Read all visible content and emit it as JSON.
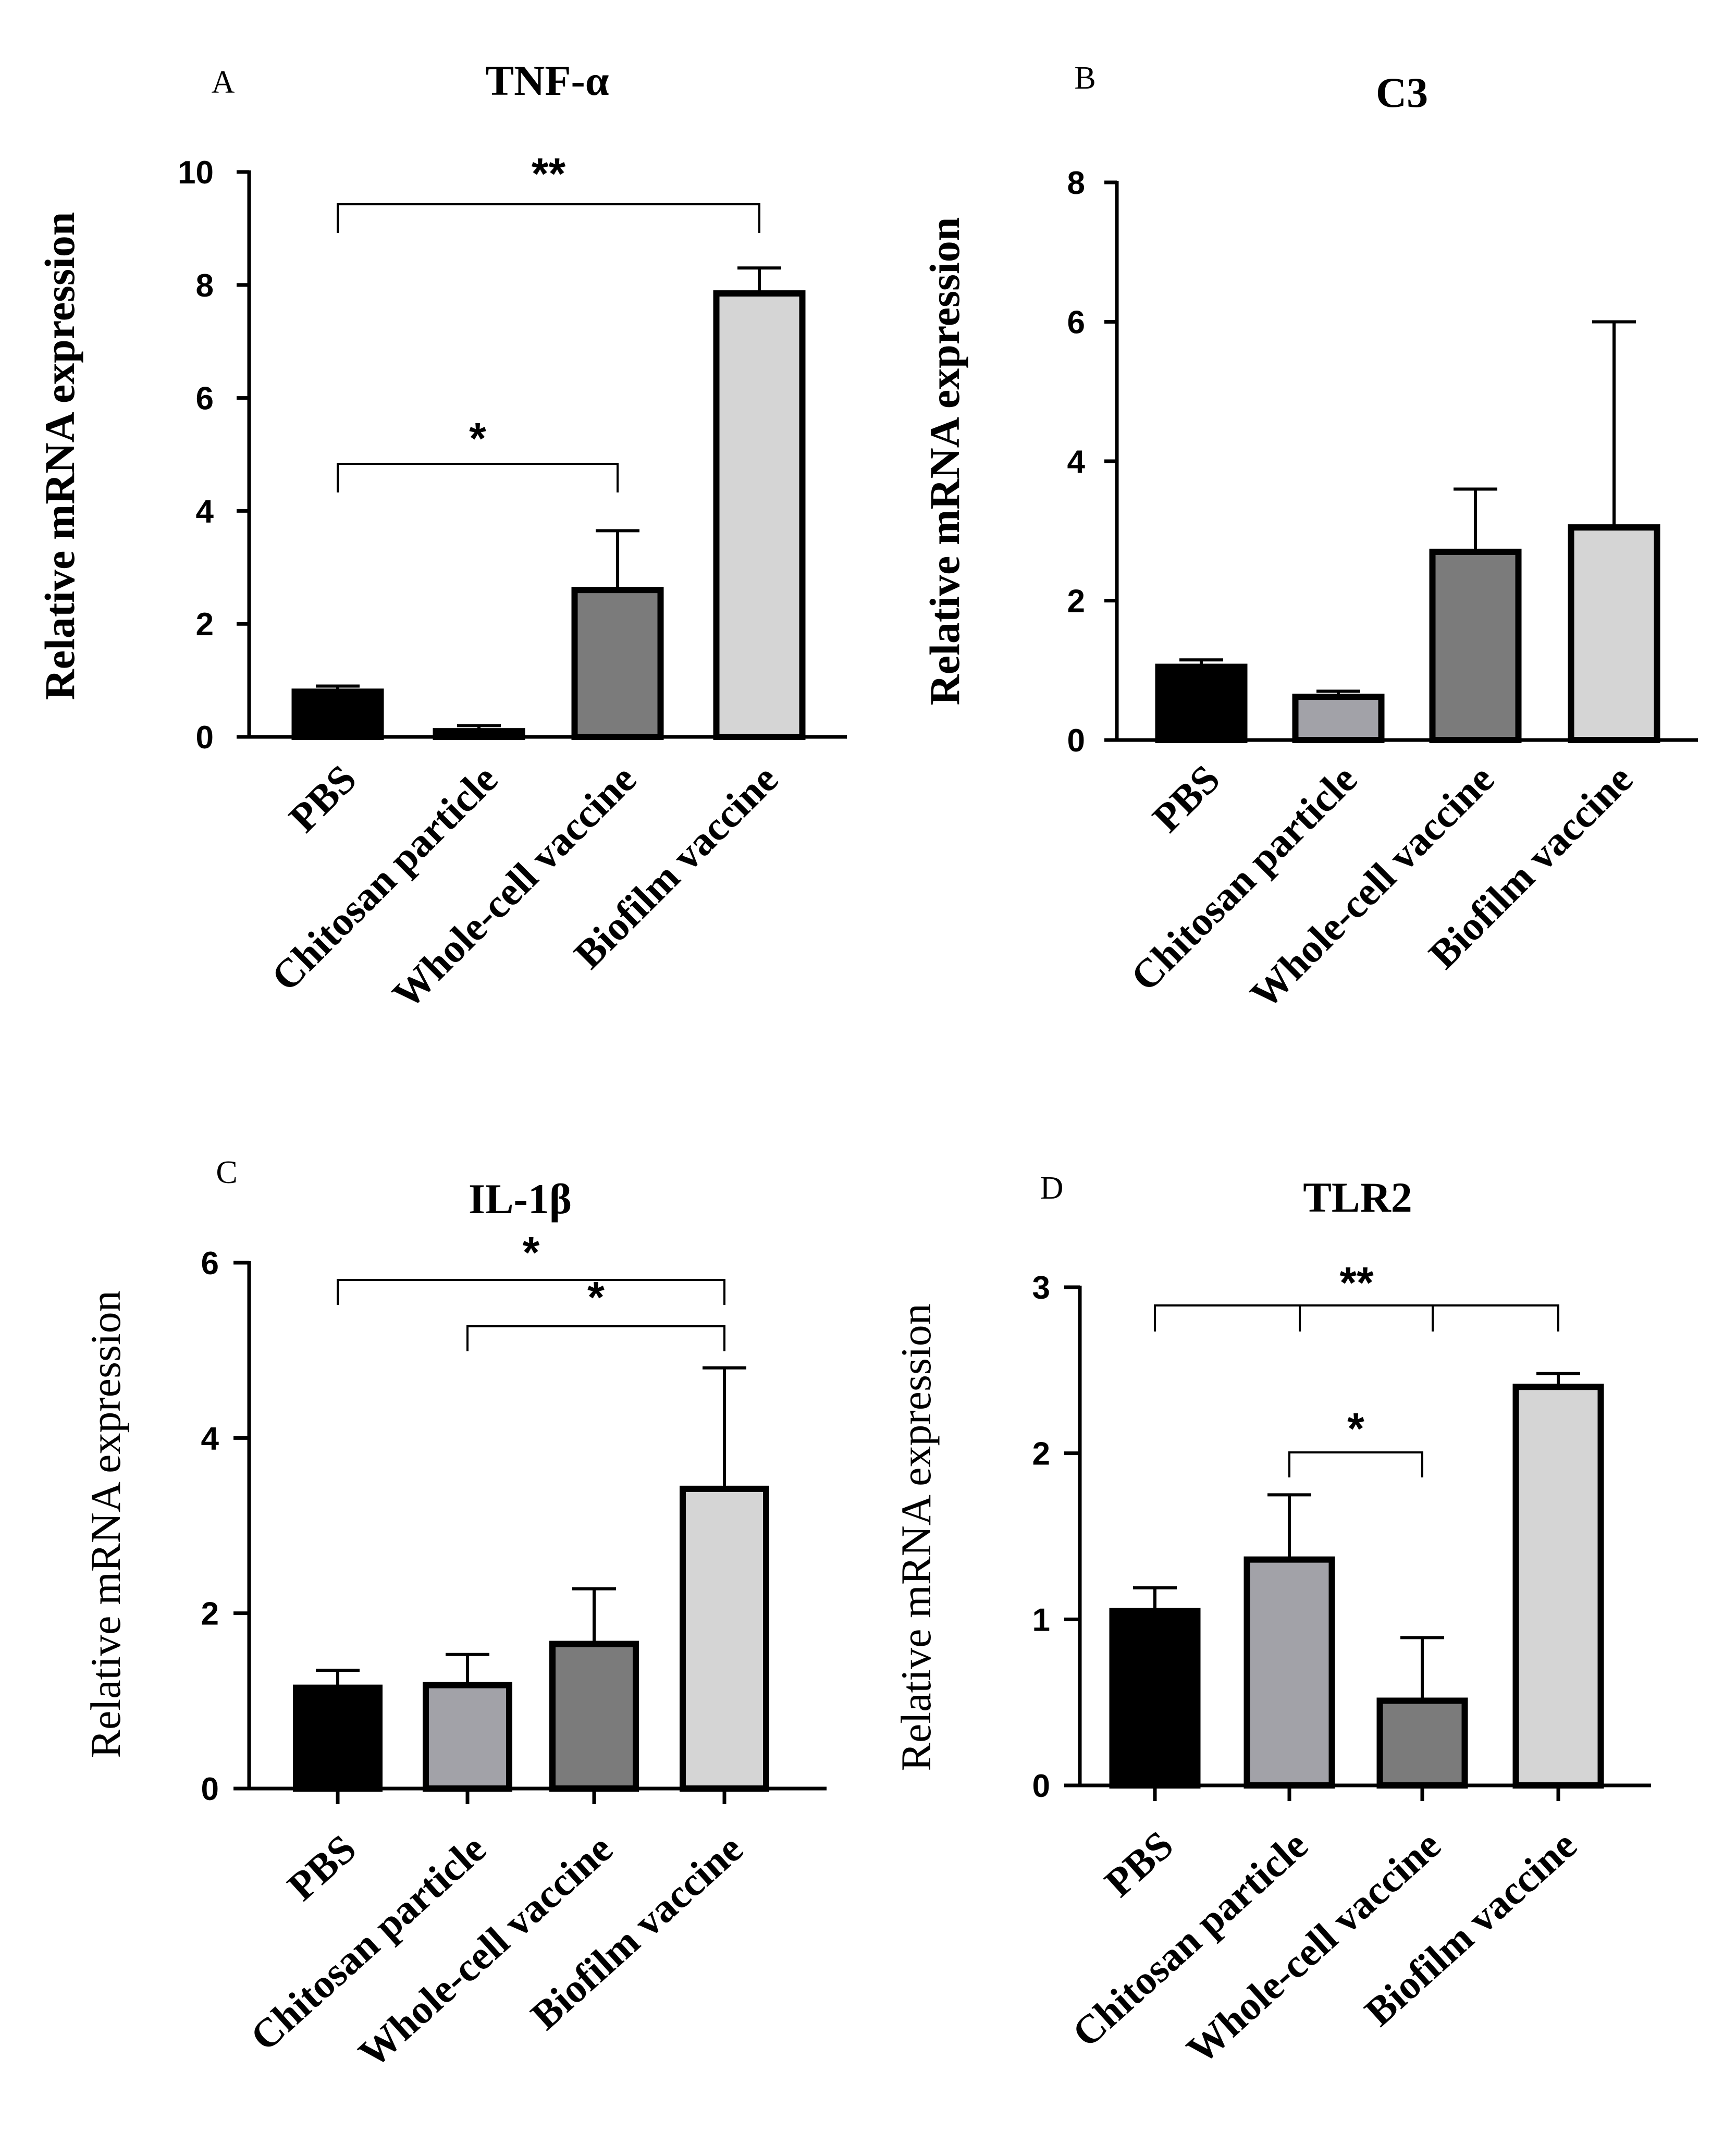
{
  "chart_data": [
    {
      "panel": "A",
      "type": "bar",
      "title": "TNF-α",
      "ylabel": "Relative mRNA expression",
      "ylim": [
        0,
        10
      ],
      "yticks": [
        0,
        2,
        4,
        6,
        8,
        10
      ],
      "categories": [
        "PBS",
        "Chitosan particle",
        "Whole-cell vaccine",
        "Biofilm vaccine"
      ],
      "values": [
        0.8,
        0.1,
        2.6,
        7.85
      ],
      "errors": [
        0.1,
        0.1,
        1.05,
        0.45
      ],
      "colors": [
        "#000000",
        "#a2a2a8",
        "#7b7b7b",
        "#d5d5d5"
      ],
      "significance": [
        {
          "groups": [
            0,
            3
          ],
          "label": "**"
        },
        {
          "groups": [
            0,
            2
          ],
          "label": "*"
        }
      ]
    },
    {
      "panel": "B",
      "type": "bar",
      "title": "C3",
      "ylabel": "Relative mRNA expression",
      "ylim": [
        0,
        8
      ],
      "yticks": [
        0,
        2,
        4,
        6,
        8
      ],
      "categories": [
        "PBS",
        "Chitosan particle",
        "Whole-cell vaccine",
        "Biofilm vaccine"
      ],
      "values": [
        1.05,
        0.62,
        2.7,
        3.05
      ],
      "errors": [
        0.1,
        0.08,
        0.9,
        2.95
      ],
      "colors": [
        "#000000",
        "#a2a2a8",
        "#7b7b7b",
        "#d5d5d5"
      ],
      "significance": []
    },
    {
      "panel": "C",
      "type": "bar",
      "title": "IL-1β",
      "ylabel": "Relative mRNA expression",
      "ylim": [
        0,
        6
      ],
      "yticks": [
        0,
        2,
        4,
        6
      ],
      "categories": [
        "PBS",
        "Chitosan particle",
        "Whole-cell vaccine",
        "Biofilm vaccine"
      ],
      "values": [
        1.15,
        1.18,
        1.65,
        3.42
      ],
      "errors": [
        0.2,
        0.35,
        0.63,
        1.38
      ],
      "colors": [
        "#000000",
        "#a2a2a8",
        "#7b7b7b",
        "#d5d5d5"
      ],
      "significance": [
        {
          "groups": [
            0,
            3
          ],
          "label": "*"
        },
        {
          "groups": [
            1,
            3
          ],
          "label": "*"
        }
      ]
    },
    {
      "panel": "D",
      "type": "bar",
      "title": "TLR2",
      "ylabel": "Relative mRNA expression",
      "ylim": [
        0,
        3
      ],
      "yticks": [
        0,
        1,
        2,
        3
      ],
      "categories": [
        "PBS",
        "Chitosan particle",
        "Whole-cell vaccine",
        "Biofilm vaccine"
      ],
      "values": [
        1.05,
        1.36,
        0.51,
        2.4
      ],
      "errors": [
        0.14,
        0.39,
        0.38,
        0.08
      ],
      "colors": [
        "#000000",
        "#a2a2a8",
        "#7b7b7b",
        "#d5d5d5"
      ],
      "significance": [
        {
          "groups": [
            0,
            3
          ],
          "label": "**",
          "style": "multi",
          "drops": [
            0,
            1,
            2,
            3
          ]
        },
        {
          "groups": [
            1,
            2
          ],
          "label": "*"
        }
      ]
    }
  ]
}
